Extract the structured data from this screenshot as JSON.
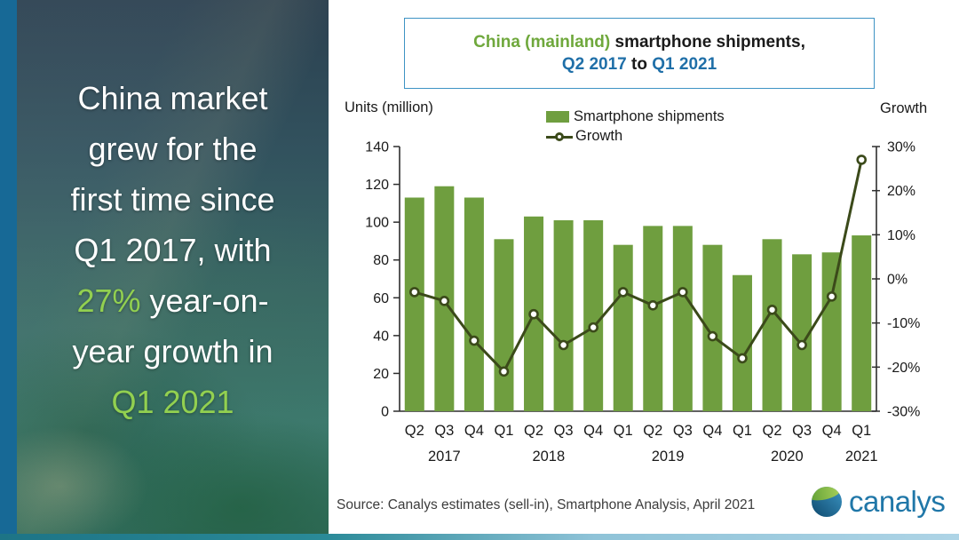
{
  "sidebar": {
    "highlight_color": "#92d050",
    "text_color": "#ffffff",
    "lines": [
      [
        {
          "text": "China market",
          "color": "#ffffff"
        }
      ],
      [
        {
          "text": "grew for the",
          "color": "#ffffff"
        }
      ],
      [
        {
          "text": "first time since",
          "color": "#ffffff"
        }
      ],
      [
        {
          "text": "Q1 2017, with",
          "color": "#ffffff"
        }
      ],
      [
        {
          "text": "27%",
          "color": "#92d050"
        },
        {
          "text": " year-on-",
          "color": "#ffffff"
        }
      ],
      [
        {
          "text": "year growth in",
          "color": "#ffffff"
        }
      ],
      [
        {
          "text": "Q1 2021",
          "color": "#92d050"
        }
      ]
    ]
  },
  "header": {
    "title_lines": [
      [
        {
          "text": "China (mainland)",
          "color": "#6fa83c"
        },
        {
          "text": " smartphone shipments,",
          "color": "#1a1a1a"
        }
      ],
      [
        {
          "text": "Q2 2017",
          "color": "#1f6fa8"
        },
        {
          "text": " to ",
          "color": "#1a1a1a"
        },
        {
          "text": "Q1 2021",
          "color": "#1f6fa8"
        }
      ]
    ]
  },
  "chart_data": {
    "type": "bar",
    "title": "China (mainland) smartphone shipments, Q2 2017 to Q1 2021",
    "categories": [
      "Q2",
      "Q3",
      "Q4",
      "Q1",
      "Q2",
      "Q3",
      "Q4",
      "Q1",
      "Q2",
      "Q3",
      "Q4",
      "Q1",
      "Q2",
      "Q3",
      "Q4",
      "Q1"
    ],
    "year_groups": [
      {
        "label": "2017",
        "start": 0,
        "count": 3
      },
      {
        "label": "2018",
        "start": 3,
        "count": 4
      },
      {
        "label": "2019",
        "start": 7,
        "count": 4
      },
      {
        "label": "2020",
        "start": 11,
        "count": 4
      },
      {
        "label": "2021",
        "start": 15,
        "count": 1
      }
    ],
    "series": [
      {
        "name": "Smartphone shipments",
        "type": "bar",
        "color": "#6f9e3f",
        "axis": "left",
        "values": [
          113,
          119,
          113,
          91,
          103,
          101,
          101,
          88,
          98,
          98,
          88,
          72,
          91,
          83,
          84,
          93
        ]
      },
      {
        "name": "Growth",
        "type": "line",
        "color": "#3b4a1a",
        "axis": "right",
        "values": [
          -3,
          -5,
          -14,
          -21,
          -8,
          -15,
          -11,
          -3,
          -6,
          -3,
          -13,
          -18,
          -7,
          -15,
          -4,
          27
        ]
      }
    ],
    "left_axis": {
      "label": "Units (million)",
      "min": 0,
      "max": 140,
      "step": 20,
      "suffix": ""
    },
    "right_axis": {
      "label": "Growth",
      "min": -30,
      "max": 30,
      "step": 10,
      "suffix": "%"
    },
    "legend_position": "top-center",
    "grid": false
  },
  "footer": {
    "source": "Source: Canalys estimates (sell-in), Smartphone Analysis, April 2021",
    "logo_text": "canalys",
    "logo_color": "#2077a8"
  }
}
